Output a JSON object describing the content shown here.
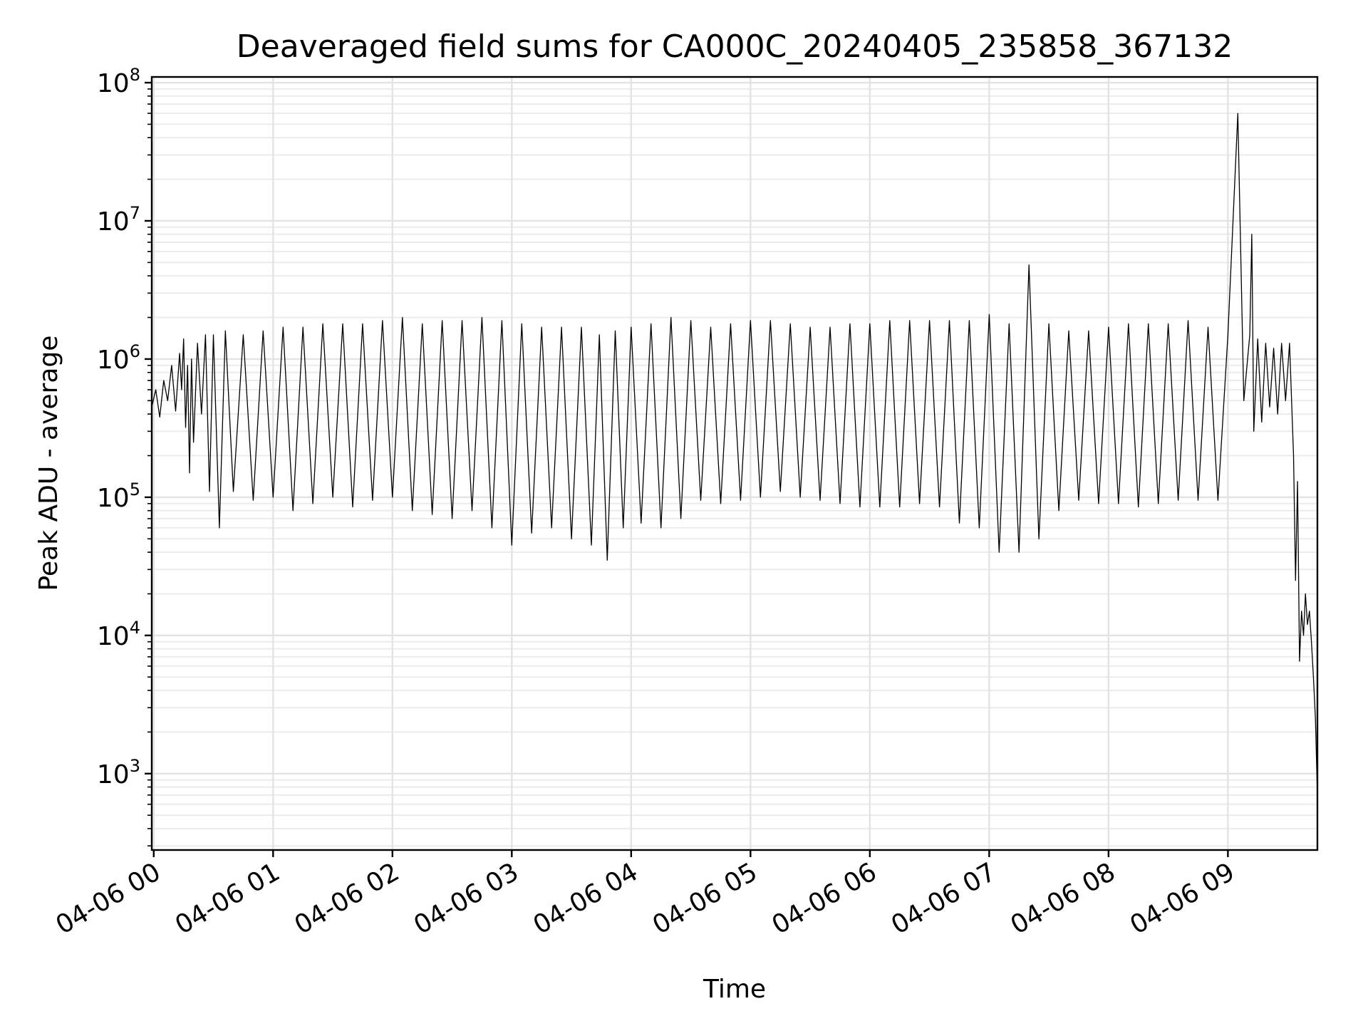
{
  "chart_data": {
    "type": "line",
    "title": "Deaveraged field sums for CA000C_20240405_235858_367132",
    "xlabel": "Time",
    "ylabel": "Peak ADU - average",
    "y_scale": "log",
    "ylim": [
      280,
      110000000
    ],
    "xlim": [
      "2024-04-05 23:59",
      "2024-04-06 09:45"
    ],
    "grid": true,
    "x_ticks": [
      {
        "value": "2024-04-06 00:00",
        "label": "04-06 00"
      },
      {
        "value": "2024-04-06 01:00",
        "label": "04-06 01"
      },
      {
        "value": "2024-04-06 02:00",
        "label": "04-06 02"
      },
      {
        "value": "2024-04-06 03:00",
        "label": "04-06 03"
      },
      {
        "value": "2024-04-06 04:00",
        "label": "04-06 04"
      },
      {
        "value": "2024-04-06 05:00",
        "label": "04-06 05"
      },
      {
        "value": "2024-04-06 06:00",
        "label": "04-06 06"
      },
      {
        "value": "2024-04-06 07:00",
        "label": "04-06 07"
      },
      {
        "value": "2024-04-06 08:00",
        "label": "04-06 08"
      },
      {
        "value": "2024-04-06 09:00",
        "label": "04-06 09"
      }
    ],
    "y_ticks": [
      {
        "value": 1000,
        "base": "10",
        "exp": "3"
      },
      {
        "value": 10000,
        "base": "10",
        "exp": "4"
      },
      {
        "value": 100000,
        "base": "10",
        "exp": "5"
      },
      {
        "value": 1000000,
        "base": "10",
        "exp": "6"
      },
      {
        "value": 10000000,
        "base": "10",
        "exp": "7"
      },
      {
        "value": 100000000,
        "base": "10",
        "exp": "8"
      }
    ],
    "series": [
      {
        "color": "#000000",
        "x": [
          "2024-04-05 23:59",
          "2024-04-06 00:01",
          "2024-04-06 00:03",
          "2024-04-06 00:05",
          "2024-04-06 00:07",
          "2024-04-06 00:09",
          "2024-04-06 00:11",
          "2024-04-06 00:13",
          "2024-04-06 00:14",
          "2024-04-06 00:15",
          "2024-04-06 00:16",
          "2024-04-06 00:17",
          "2024-04-06 00:18",
          "2024-04-06 00:19",
          "2024-04-06 00:20",
          "2024-04-06 00:22",
          "2024-04-06 00:24",
          "2024-04-06 00:26",
          "2024-04-06 00:28",
          "2024-04-06 00:30",
          "2024-04-06 00:33",
          "2024-04-06 00:36",
          "2024-04-06 00:40",
          "2024-04-06 00:45",
          "2024-04-06 00:50",
          "2024-04-06 00:55",
          "2024-04-06 01:00",
          "2024-04-06 01:05",
          "2024-04-06 01:10",
          "2024-04-06 01:15",
          "2024-04-06 01:20",
          "2024-04-06 01:25",
          "2024-04-06 01:30",
          "2024-04-06 01:35",
          "2024-04-06 01:40",
          "2024-04-06 01:45",
          "2024-04-06 01:50",
          "2024-04-06 01:55",
          "2024-04-06 02:00",
          "2024-04-06 02:05",
          "2024-04-06 02:10",
          "2024-04-06 02:15",
          "2024-04-06 02:20",
          "2024-04-06 02:25",
          "2024-04-06 02:30",
          "2024-04-06 02:35",
          "2024-04-06 02:40",
          "2024-04-06 02:45",
          "2024-04-06 02:50",
          "2024-04-06 02:55",
          "2024-04-06 03:00",
          "2024-04-06 03:05",
          "2024-04-06 03:10",
          "2024-04-06 03:15",
          "2024-04-06 03:20",
          "2024-04-06 03:25",
          "2024-04-06 03:30",
          "2024-04-06 03:35",
          "2024-04-06 03:40",
          "2024-04-06 03:44",
          "2024-04-06 03:48",
          "2024-04-06 03:52",
          "2024-04-06 03:56",
          "2024-04-06 04:00",
          "2024-04-06 04:05",
          "2024-04-06 04:10",
          "2024-04-06 04:15",
          "2024-04-06 04:20",
          "2024-04-06 04:25",
          "2024-04-06 04:30",
          "2024-04-06 04:35",
          "2024-04-06 04:40",
          "2024-04-06 04:45",
          "2024-04-06 04:50",
          "2024-04-06 04:55",
          "2024-04-06 05:00",
          "2024-04-06 05:05",
          "2024-04-06 05:10",
          "2024-04-06 05:15",
          "2024-04-06 05:20",
          "2024-04-06 05:25",
          "2024-04-06 05:30",
          "2024-04-06 05:35",
          "2024-04-06 05:40",
          "2024-04-06 05:45",
          "2024-04-06 05:50",
          "2024-04-06 05:55",
          "2024-04-06 06:00",
          "2024-04-06 06:05",
          "2024-04-06 06:10",
          "2024-04-06 06:15",
          "2024-04-06 06:20",
          "2024-04-06 06:25",
          "2024-04-06 06:30",
          "2024-04-06 06:35",
          "2024-04-06 06:40",
          "2024-04-06 06:45",
          "2024-04-06 06:50",
          "2024-04-06 06:55",
          "2024-04-06 07:00",
          "2024-04-06 07:05",
          "2024-04-06 07:10",
          "2024-04-06 07:15",
          "2024-04-06 07:20",
          "2024-04-06 07:25",
          "2024-04-06 07:30",
          "2024-04-06 07:35",
          "2024-04-06 07:40",
          "2024-04-06 07:45",
          "2024-04-06 07:50",
          "2024-04-06 07:55",
          "2024-04-06 08:00",
          "2024-04-06 08:05",
          "2024-04-06 08:10",
          "2024-04-06 08:15",
          "2024-04-06 08:20",
          "2024-04-06 08:25",
          "2024-04-06 08:30",
          "2024-04-06 08:35",
          "2024-04-06 08:40",
          "2024-04-06 08:45",
          "2024-04-06 08:50",
          "2024-04-06 08:55",
          "2024-04-06 09:00",
          "2024-04-06 09:05",
          "2024-04-06 09:08",
          "2024-04-06 09:11",
          "2024-04-06 09:12",
          "2024-04-06 09:13",
          "2024-04-06 09:15",
          "2024-04-06 09:17",
          "2024-04-06 09:19",
          "2024-04-06 09:21",
          "2024-04-06 09:23",
          "2024-04-06 09:25",
          "2024-04-06 09:27",
          "2024-04-06 09:29",
          "2024-04-06 09:31",
          "2024-04-06 09:33",
          "2024-04-06 09:34",
          "2024-04-06 09:35",
          "2024-04-06 09:36",
          "2024-04-06 09:37",
          "2024-04-06 09:38",
          "2024-04-06 09:39",
          "2024-04-06 09:40",
          "2024-04-06 09:41",
          "2024-04-06 09:42",
          "2024-04-06 09:43",
          "2024-04-06 09:44",
          "2024-04-06 09:45"
        ],
        "y": [
          450000,
          600000,
          380000,
          700000,
          500000,
          900000,
          420000,
          1100000,
          600000,
          1400000,
          320000,
          900000,
          150000,
          1000000,
          250000,
          1300000,
          400000,
          1500000,
          110000,
          1500000,
          60000,
          1600000,
          110000,
          1500000,
          95000,
          1600000,
          100000,
          1700000,
          80000,
          1700000,
          90000,
          1800000,
          100000,
          1800000,
          85000,
          1800000,
          95000,
          1900000,
          100000,
          2000000,
          80000,
          1800000,
          75000,
          1900000,
          70000,
          1900000,
          80000,
          2000000,
          60000,
          1900000,
          45000,
          1800000,
          55000,
          1700000,
          60000,
          1700000,
          50000,
          1700000,
          45000,
          1500000,
          35000,
          1600000,
          60000,
          1700000,
          65000,
          1800000,
          60000,
          2000000,
          70000,
          1900000,
          95000,
          1700000,
          90000,
          1800000,
          95000,
          1900000,
          100000,
          1900000,
          110000,
          1800000,
          100000,
          1700000,
          95000,
          1700000,
          90000,
          1800000,
          85000,
          1800000,
          85000,
          1900000,
          85000,
          1900000,
          90000,
          1900000,
          85000,
          1900000,
          65000,
          1900000,
          60000,
          2100000,
          40000,
          1800000,
          40000,
          4800000,
          50000,
          1800000,
          80000,
          1600000,
          95000,
          1600000,
          90000,
          1700000,
          90000,
          1800000,
          85000,
          1800000,
          90000,
          1800000,
          95000,
          1900000,
          95000,
          1700000,
          95000,
          1500000,
          60000000,
          500000,
          1500000,
          8000000,
          300000,
          1400000,
          350000,
          1300000,
          450000,
          1200000,
          400000,
          1300000,
          500000,
          1300000,
          200000,
          25000,
          130000,
          6500,
          15000,
          10000,
          20000,
          12000,
          15000,
          9000,
          5000,
          2500,
          700
        ]
      }
    ]
  }
}
